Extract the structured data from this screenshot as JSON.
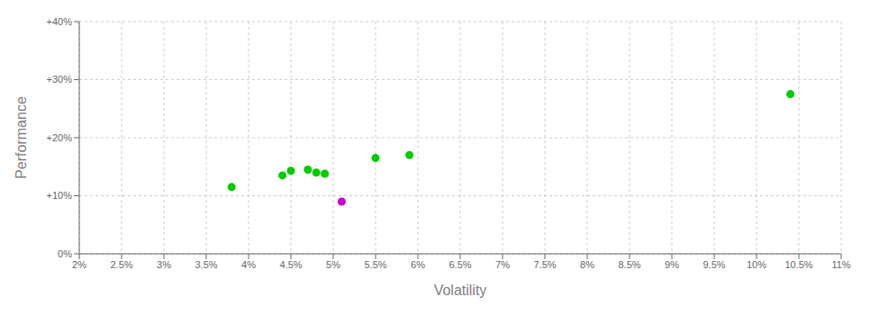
{
  "chart_data": {
    "type": "scatter",
    "xlabel": "Volatility",
    "ylabel": "Performance",
    "xlim": [
      0.02,
      0.11
    ],
    "ylim": [
      0.0,
      0.4
    ],
    "xticks": [
      {
        "value": 0.02,
        "label": "2%"
      },
      {
        "value": 0.025,
        "label": "2.5%"
      },
      {
        "value": 0.03,
        "label": "3%"
      },
      {
        "value": 0.035,
        "label": "3.5%"
      },
      {
        "value": 0.04,
        "label": "4%"
      },
      {
        "value": 0.045,
        "label": "4.5%"
      },
      {
        "value": 0.05,
        "label": "5%"
      },
      {
        "value": 0.055,
        "label": "5.5%"
      },
      {
        "value": 0.06,
        "label": "6%"
      },
      {
        "value": 0.065,
        "label": "6.5%"
      },
      {
        "value": 0.07,
        "label": "7%"
      },
      {
        "value": 0.075,
        "label": "7.5%"
      },
      {
        "value": 0.08,
        "label": "8%"
      },
      {
        "value": 0.085,
        "label": "8.5%"
      },
      {
        "value": 0.09,
        "label": "9%"
      },
      {
        "value": 0.095,
        "label": "9.5%"
      },
      {
        "value": 0.1,
        "label": "10%"
      },
      {
        "value": 0.105,
        "label": "10.5%"
      },
      {
        "value": 0.11,
        "label": "11%"
      }
    ],
    "yticks": [
      {
        "value": 0.0,
        "label": "0%"
      },
      {
        "value": 0.1,
        "label": "+10%"
      },
      {
        "value": 0.2,
        "label": "+20%"
      },
      {
        "value": 0.3,
        "label": "+30%"
      },
      {
        "value": 0.4,
        "label": "+40%"
      }
    ],
    "grid": true,
    "series": [
      {
        "color": "#00cc00",
        "x": [
          0.038,
          0.044,
          0.045,
          0.047,
          0.048,
          0.049,
          0.055,
          0.059,
          0.104
        ],
        "values": [
          0.115,
          0.135,
          0.143,
          0.145,
          0.14,
          0.138,
          0.165,
          0.17,
          0.275
        ]
      },
      {
        "color": "#cc00cc",
        "x": [
          0.051
        ],
        "values": [
          0.09
        ]
      }
    ]
  }
}
